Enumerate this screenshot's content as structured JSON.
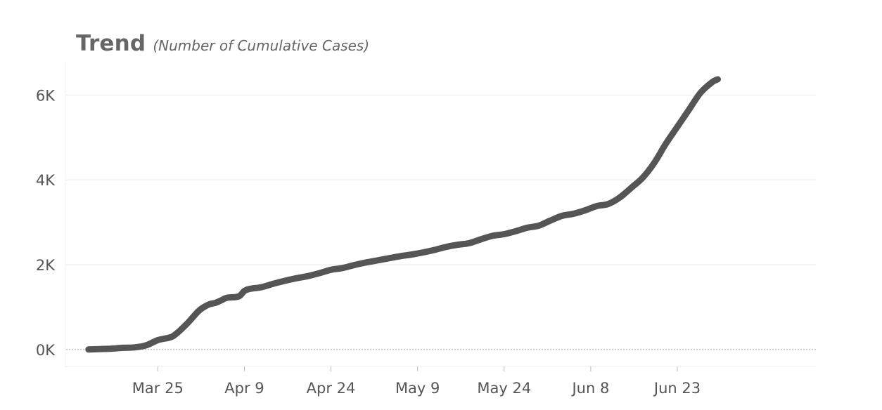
{
  "chart_data": {
    "type": "line",
    "title": "Trend",
    "subtitle": "(Number of Cumulative Cases)",
    "xlabel": "",
    "ylabel": "",
    "x_tick_labels": [
      "Mar 25",
      "Apr 9",
      "Apr 24",
      "May 9",
      "May 24",
      "Jun 8",
      "Jun 23"
    ],
    "y_tick_labels": [
      "0K",
      "2K",
      "4K",
      "6K"
    ],
    "y_ticks": [
      0,
      2000,
      4000,
      6000
    ],
    "ylim": [
      -400,
      6800
    ],
    "xlim": [
      "2020-03-09",
      "2020-07-17"
    ],
    "grid": true,
    "legend": "none",
    "line_color": "#555555",
    "series": [
      {
        "x": [
          "2020-03-13",
          "2020-03-15",
          "2020-03-17",
          "2020-03-19",
          "2020-03-21",
          "2020-03-23",
          "2020-03-25",
          "2020-03-27",
          "2020-03-28",
          "2020-03-30",
          "2020-04-01",
          "2020-04-02",
          "2020-04-03",
          "2020-04-04",
          "2020-04-05",
          "2020-04-06",
          "2020-04-08",
          "2020-04-09",
          "2020-04-10",
          "2020-04-12",
          "2020-04-14",
          "2020-04-16",
          "2020-04-18",
          "2020-04-20",
          "2020-04-22",
          "2020-04-24",
          "2020-04-26",
          "2020-04-28",
          "2020-04-30",
          "2020-05-02",
          "2020-05-04",
          "2020-05-06",
          "2020-05-08",
          "2020-05-10",
          "2020-05-12",
          "2020-05-14",
          "2020-05-16",
          "2020-05-18",
          "2020-05-20",
          "2020-05-22",
          "2020-05-24",
          "2020-05-26",
          "2020-05-28",
          "2020-05-30",
          "2020-06-01",
          "2020-06-03",
          "2020-06-05",
          "2020-06-07",
          "2020-06-09",
          "2020-06-11",
          "2020-06-13",
          "2020-06-15",
          "2020-06-17",
          "2020-06-19",
          "2020-06-21",
          "2020-06-23",
          "2020-06-25",
          "2020-06-27",
          "2020-06-29",
          "2020-06-30"
        ],
        "values": [
          0,
          10,
          20,
          40,
          50,
          100,
          220,
          280,
          350,
          600,
          900,
          1000,
          1070,
          1100,
          1160,
          1220,
          1250,
          1380,
          1430,
          1470,
          1550,
          1620,
          1680,
          1730,
          1800,
          1880,
          1920,
          1990,
          2050,
          2100,
          2150,
          2200,
          2240,
          2290,
          2350,
          2420,
          2470,
          2510,
          2600,
          2680,
          2720,
          2790,
          2870,
          2920,
          3040,
          3150,
          3200,
          3280,
          3380,
          3430,
          3580,
          3810,
          4050,
          4400,
          4850,
          5250,
          5650,
          6050,
          6300,
          6370
        ]
      }
    ]
  }
}
